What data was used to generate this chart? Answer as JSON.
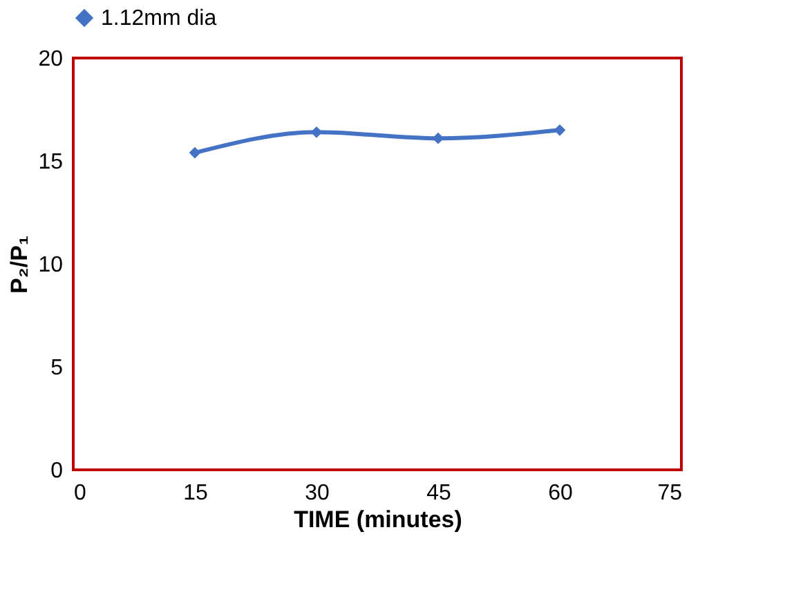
{
  "chart_data": {
    "type": "line",
    "x": [
      15,
      30,
      45,
      60
    ],
    "series": [
      {
        "name": "1.12mm dia",
        "color": "#4472c4",
        "values": [
          15.4,
          16.4,
          16.1,
          16.5
        ]
      }
    ],
    "xlabel": "TIME (minutes)",
    "ylabel": "P₂/P₁",
    "xlim": [
      0,
      75
    ],
    "xticks": [
      0,
      15,
      30,
      45,
      60,
      75
    ],
    "ylim": [
      0,
      20
    ],
    "yticks": [
      0,
      5,
      10,
      15,
      20
    ],
    "grid": false,
    "legend": "top",
    "marker": "diamond",
    "line_style": "solid"
  }
}
